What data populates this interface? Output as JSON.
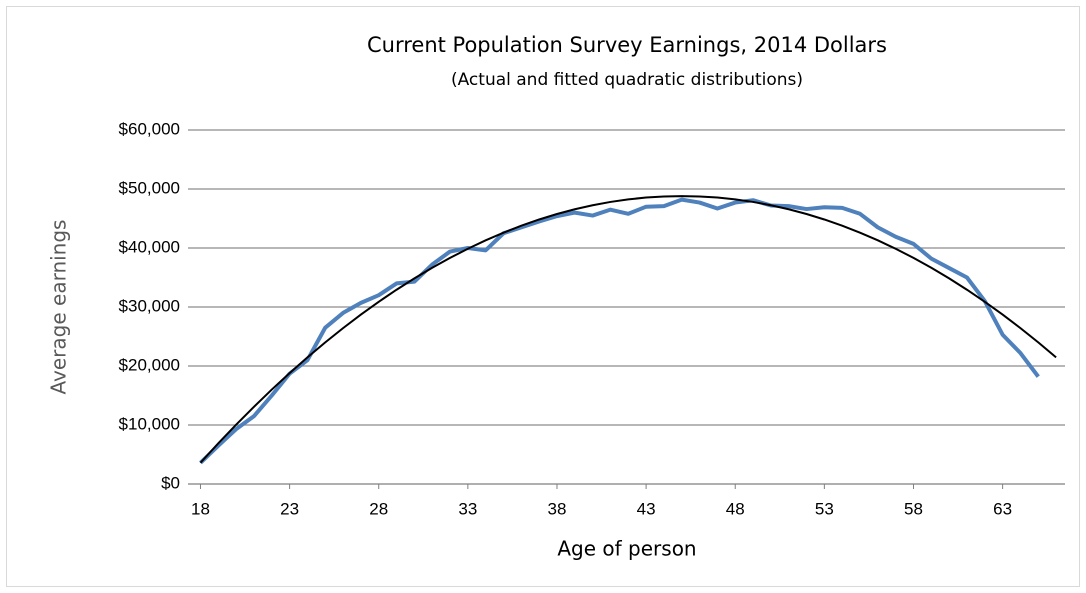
{
  "chart_data": {
    "type": "line",
    "title": "Current Population Survey Earnings, 2014 Dollars",
    "subtitle": "(Actual and fitted quadratic distributions)",
    "x_label": "Age of person",
    "y_label": "Average earnings",
    "x": [
      18,
      19,
      20,
      21,
      22,
      23,
      24,
      25,
      26,
      27,
      28,
      29,
      30,
      31,
      32,
      33,
      34,
      35,
      36,
      37,
      38,
      39,
      40,
      41,
      42,
      43,
      44,
      45,
      46,
      47,
      48,
      49,
      50,
      51,
      52,
      53,
      54,
      55,
      56,
      57,
      58,
      59,
      60,
      61,
      62,
      63,
      64,
      65,
      66
    ],
    "series": [
      {
        "color": "#4f81bd",
        "width": 4,
        "values": [
          3600,
          6500,
          9300,
          11500,
          15000,
          18700,
          21000,
          26500,
          29000,
          30700,
          32000,
          34000,
          34300,
          37200,
          39400,
          40000,
          39600,
          42500,
          43500,
          44500,
          45400,
          46000,
          45500,
          46500,
          45800,
          47000,
          47100,
          48200,
          47700,
          46700,
          47700,
          48100,
          47200,
          47100,
          46600,
          46900,
          46800,
          45800,
          43500,
          41900,
          40700,
          38200,
          36600,
          35000,
          31000,
          25300,
          22200,
          18200,
          null
        ]
      },
      {
        "color": "#000000",
        "width": 2,
        "values": [
          3602,
          6888,
          10050,
          13088,
          16002,
          18792,
          21458,
          24000,
          26418,
          28712,
          30882,
          32928,
          34850,
          36648,
          38322,
          39872,
          41298,
          42600,
          43778,
          44832,
          45762,
          46568,
          47250,
          47808,
          48242,
          48552,
          48738,
          48800,
          48738,
          48552,
          48242,
          47808,
          47250,
          46568,
          45762,
          44832,
          43778,
          42600,
          41298,
          39872,
          38322,
          36648,
          34850,
          32928,
          30882,
          28712,
          26418,
          24000,
          21458
        ]
      }
    ],
    "xlim": [
      17.3,
      66.5
    ],
    "xticks": [
      18,
      23,
      28,
      33,
      38,
      43,
      48,
      53,
      58,
      63
    ],
    "ylim": [
      0,
      60000
    ],
    "yticks": [
      {
        "value": 0,
        "label": "$0"
      },
      {
        "value": 10000,
        "label": "$10,000"
      },
      {
        "value": 20000,
        "label": "$20,000"
      },
      {
        "value": 30000,
        "label": "$30,000"
      },
      {
        "value": 40000,
        "label": "$40,000"
      },
      {
        "value": 50000,
        "label": "$50,000"
      },
      {
        "value": 60000,
        "label": "$60,000"
      }
    ],
    "grid": true
  }
}
